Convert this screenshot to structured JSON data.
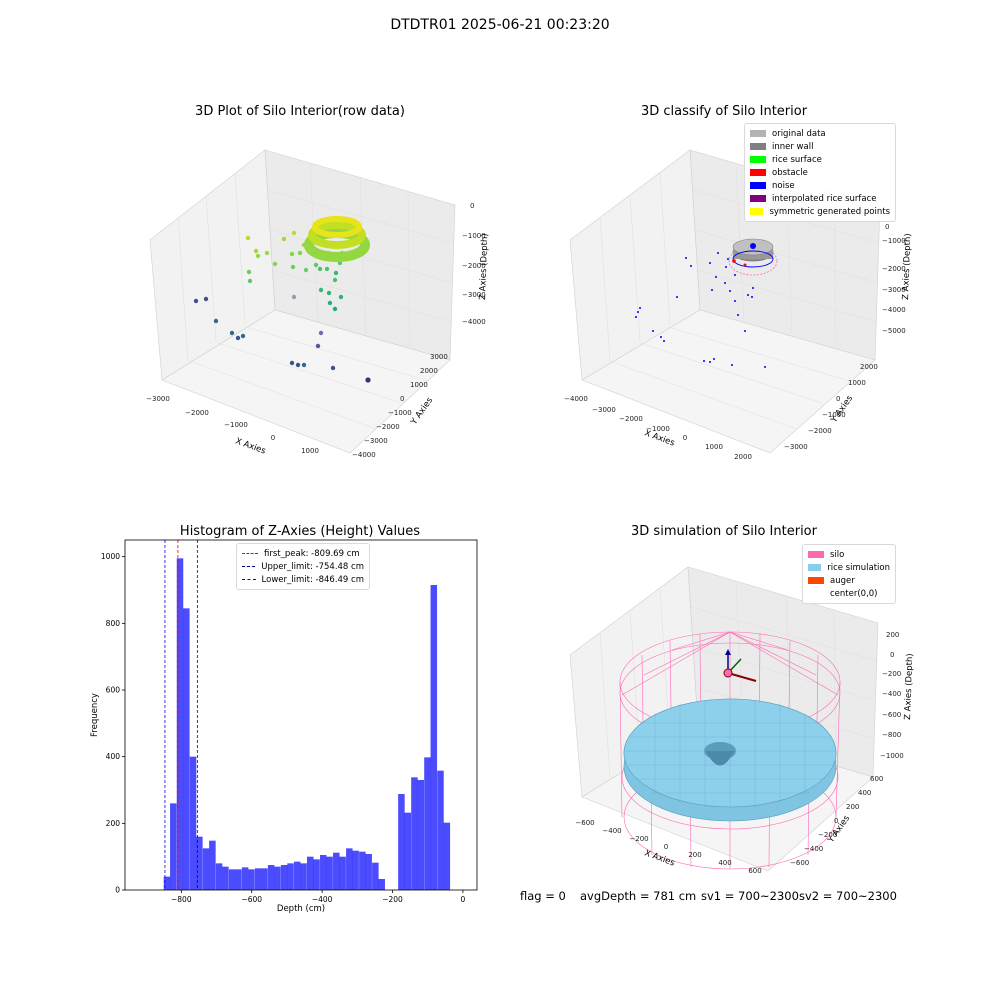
{
  "figure": {
    "title": "DTDTR01 2025-06-21 00:23:20"
  },
  "panels": {
    "raw": {
      "title": "3D Plot of Silo Interior(row data)",
      "x_label": "X Axies",
      "y_label": "Y Axies",
      "z_label": "Z Axies (Depth)",
      "x_ticks": [
        "−3000",
        "−2000",
        "−1000",
        "0",
        "1000"
      ],
      "y_ticks": [
        "3000",
        "2000",
        "1000",
        "0",
        "−1000",
        "−2000",
        "−3000",
        "−4000"
      ],
      "z_ticks": [
        "0",
        "−1000",
        "−2000",
        "−3000",
        "−4000"
      ]
    },
    "classify": {
      "title": "3D classify of Silo Interior",
      "x_label": "X Axies",
      "y_label": "Y Axies",
      "z_label": "Z Axies (Depth)",
      "x_ticks": [
        "−4000",
        "−3000",
        "−2000",
        "−1000",
        "0",
        "1000",
        "2000"
      ],
      "y_ticks": [
        "2000",
        "1000",
        "0",
        "−1000",
        "−2000",
        "−3000"
      ],
      "z_ticks": [
        "0",
        "−1000",
        "−2000",
        "−3000",
        "−4000",
        "−5000"
      ],
      "legend": [
        {
          "label": "original data",
          "color": "#b3b3b3"
        },
        {
          "label": "inner wall",
          "color": "#808080"
        },
        {
          "label": "rice surface",
          "color": "#00ff00"
        },
        {
          "label": "obstacle",
          "color": "#ff0000"
        },
        {
          "label": "noise",
          "color": "#0000ff"
        },
        {
          "label": "interpolated rice surface",
          "color": "#800080"
        },
        {
          "label": "symmetric generated points",
          "color": "#ffff00"
        }
      ]
    },
    "simulation": {
      "title": "3D simulation of Silo Interior",
      "x_label": "X Axies",
      "y_label": "Y Axies",
      "z_label": "Z Axies (Depth)",
      "x_ticks": [
        "−600",
        "−400",
        "−200",
        "0",
        "200",
        "400",
        "600"
      ],
      "y_ticks": [
        "600",
        "400",
        "200",
        "0",
        "−200",
        "−400",
        "−600"
      ],
      "z_ticks": [
        "200",
        "0",
        "−200",
        "−400",
        "−600",
        "−800",
        "−1000"
      ],
      "legend": [
        {
          "label": "silo",
          "color": "#ff69b4"
        },
        {
          "label": "rice simulation",
          "color": "#87ceeb"
        },
        {
          "label": "auger",
          "color": "#ff4500"
        },
        {
          "label": "center(0,0)",
          "color": "#ffffff"
        }
      ]
    }
  },
  "chart_data": [
    {
      "type": "bar",
      "title": "Histogram of Z-Axies (Height) Values",
      "xlabel": "Depth (cm)",
      "ylabel": "Frequency",
      "xlim": [
        -960,
        40
      ],
      "ylim": [
        0,
        1050
      ],
      "x_ticks": [
        -800,
        -600,
        -400,
        -200,
        0
      ],
      "y_ticks": [
        0,
        200,
        400,
        600,
        800,
        1000
      ],
      "bar_color": "#0000ff",
      "bin_width": 18.5,
      "bins_start": [
        -850,
        -832,
        -813,
        -795,
        -776,
        -758,
        -739,
        -721,
        -702,
        -684,
        -665,
        -647,
        -628,
        -610,
        -591,
        -573,
        -554,
        -536,
        -517,
        -499,
        -480,
        -462,
        -443,
        -425,
        -406,
        -388,
        -369,
        -351,
        -332,
        -314,
        -295,
        -277,
        -258,
        -240,
        -221,
        -203,
        -184,
        -166,
        -147,
        -129,
        -110,
        -92,
        -73,
        -55,
        -36,
        -18
      ],
      "values": [
        40,
        260,
        995,
        845,
        400,
        160,
        125,
        148,
        80,
        70,
        62,
        62,
        68,
        62,
        65,
        65,
        75,
        70,
        75,
        80,
        85,
        80,
        100,
        92,
        105,
        100,
        112,
        100,
        125,
        118,
        115,
        108,
        82,
        33,
        0,
        0,
        288,
        232,
        338,
        330,
        398,
        915,
        358,
        202,
        0,
        0
      ],
      "vlines": [
        {
          "label": "first_peak: -809.69 cm",
          "x": -809.69,
          "color": "#ff0000"
        },
        {
          "label": "Upper_limit: -754.48 cm",
          "x": -754.48,
          "color": "#00008b"
        },
        {
          "label": "Lower_limit: -846.49 cm",
          "x": -846.49,
          "color": "#0000ff"
        }
      ],
      "legend_position": "upper-center"
    }
  ],
  "status": {
    "flag": "flag = 0",
    "avg_depth": "avgDepth = 781 cm",
    "sv1": "sv1 = 700~2300",
    "sv2": "sv2 = 700~2300"
  }
}
